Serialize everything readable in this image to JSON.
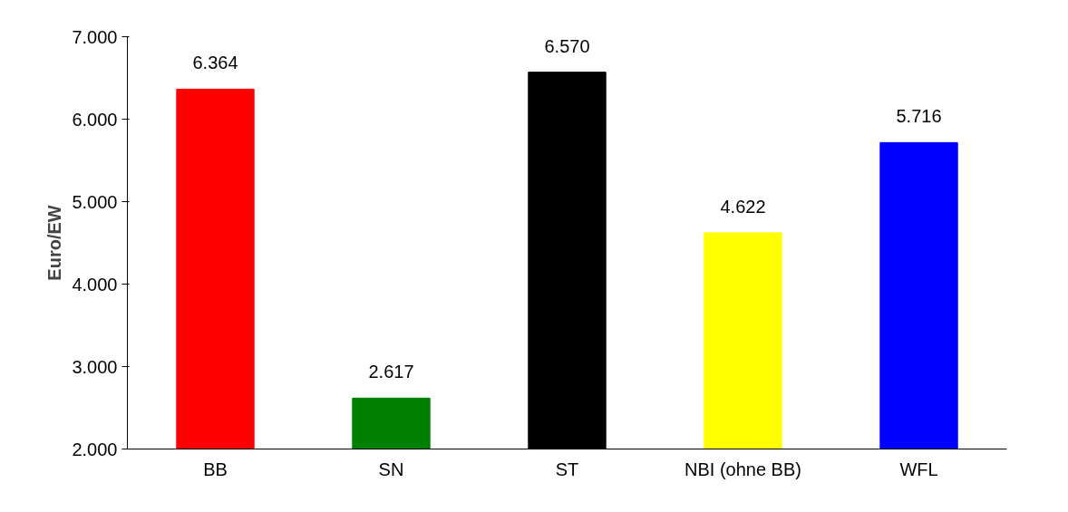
{
  "chart_data": {
    "type": "bar",
    "ylabel": "Euro/EW",
    "categories": [
      "BB",
      "SN",
      "ST",
      "NBI (ohne BB)",
      "WFL"
    ],
    "values": [
      6364,
      2617,
      6570,
      4622,
      5716
    ],
    "colors": [
      "#ff0000",
      "#008000",
      "#000000",
      "#ffff00",
      "#0000ff"
    ],
    "value_labels": [
      "6.364",
      "2.617",
      "6.570",
      "4.622",
      "5.716"
    ],
    "ylim": [
      2000,
      7000
    ],
    "yticks": [
      {
        "value": 2000,
        "label": "2.000"
      },
      {
        "value": 3000,
        "label": "3.000"
      },
      {
        "value": 4000,
        "label": "4.000"
      },
      {
        "value": 5000,
        "label": "5.000"
      },
      {
        "value": 6000,
        "label": "6.000"
      },
      {
        "value": 7000,
        "label": "7.000"
      }
    ],
    "grid": false
  }
}
